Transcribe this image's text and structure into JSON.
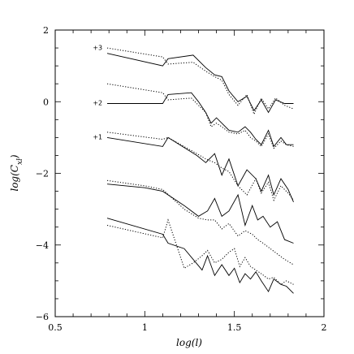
{
  "chart_data": {
    "type": "line",
    "xlabel": "log(l)",
    "ylabel": "log(C_xl)",
    "xlim": [
      0.5,
      2.0
    ],
    "ylim": [
      -6,
      2
    ],
    "xticks": [
      0.5,
      1,
      1.5,
      2
    ],
    "yticks": [
      -6,
      -4,
      -2,
      0,
      2
    ],
    "xtick_labels": [
      "0.5",
      "1",
      "1.5",
      "2"
    ],
    "ytick_labels": [
      "−6",
      "−4",
      "−2",
      "0",
      "2"
    ],
    "grid": false,
    "annotations": [
      {
        "text": "+3",
        "x": 0.71,
        "y": 1.45
      },
      {
        "text": "+2",
        "x": 0.71,
        "y": -0.1
      },
      {
        "text": "+1",
        "x": 0.71,
        "y": -1.05
      }
    ],
    "series": [
      {
        "style": "solid",
        "x": [
          0.79,
          1.1,
          1.13,
          1.27,
          1.34,
          1.39,
          1.43,
          1.47,
          1.52,
          1.57,
          1.61,
          1.65,
          1.69,
          1.73,
          1.78,
          1.83
        ],
        "y": [
          1.35,
          1.0,
          1.2,
          1.3,
          0.95,
          0.75,
          0.7,
          0.3,
          0.0,
          0.15,
          -0.25,
          0.05,
          -0.3,
          0.05,
          -0.05,
          -0.05
        ]
      },
      {
        "style": "dotted",
        "x": [
          0.79,
          1.1,
          1.13,
          1.27,
          1.34,
          1.39,
          1.43,
          1.47,
          1.52,
          1.57,
          1.61,
          1.65,
          1.69,
          1.73,
          1.78,
          1.83
        ],
        "y": [
          1.5,
          1.25,
          1.05,
          1.1,
          0.85,
          0.7,
          0.6,
          0.2,
          -0.1,
          0.2,
          -0.35,
          0.1,
          -0.2,
          0.1,
          -0.1,
          -0.2
        ]
      },
      {
        "style": "solid",
        "x": [
          0.79,
          1.1,
          1.13,
          1.26,
          1.3,
          1.34,
          1.37,
          1.4,
          1.43,
          1.47,
          1.52,
          1.56,
          1.59,
          1.62,
          1.65,
          1.69,
          1.72,
          1.76,
          1.79,
          1.83
        ],
        "y": [
          -0.05,
          -0.05,
          0.2,
          0.25,
          0.0,
          -0.3,
          -0.6,
          -0.45,
          -0.6,
          -0.8,
          -0.85,
          -0.7,
          -0.85,
          -1.05,
          -1.2,
          -0.8,
          -1.25,
          -1.0,
          -1.2,
          -1.2
        ]
      },
      {
        "style": "dotted",
        "x": [
          0.79,
          1.1,
          1.13,
          1.26,
          1.3,
          1.34,
          1.37,
          1.4,
          1.43,
          1.47,
          1.52,
          1.56,
          1.59,
          1.62,
          1.65,
          1.69,
          1.72,
          1.76,
          1.79,
          1.83
        ],
        "y": [
          0.5,
          0.25,
          0.05,
          0.1,
          -0.1,
          -0.3,
          -0.7,
          -0.6,
          -0.7,
          -0.85,
          -0.9,
          -0.8,
          -1.0,
          -1.1,
          -1.25,
          -0.9,
          -1.3,
          -1.1,
          -1.2,
          -1.25
        ]
      },
      {
        "style": "solid",
        "x": [
          0.79,
          1.1,
          1.13,
          1.29,
          1.34,
          1.39,
          1.43,
          1.47,
          1.52,
          1.57,
          1.62,
          1.65,
          1.69,
          1.72,
          1.76,
          1.8,
          1.83
        ],
        "y": [
          -1.0,
          -1.25,
          -1.0,
          -1.5,
          -1.7,
          -1.45,
          -2.05,
          -1.6,
          -2.35,
          -1.9,
          -2.15,
          -2.5,
          -2.05,
          -2.6,
          -2.15,
          -2.45,
          -2.8
        ]
      },
      {
        "style": "dotted",
        "x": [
          0.79,
          1.1,
          1.13,
          1.29,
          1.34,
          1.39,
          1.43,
          1.47,
          1.52,
          1.57,
          1.62,
          1.65,
          1.69,
          1.72,
          1.76,
          1.8,
          1.83
        ],
        "y": [
          -0.85,
          -1.05,
          -1.0,
          -1.45,
          -1.6,
          -1.7,
          -1.85,
          -1.95,
          -2.35,
          -2.6,
          -2.15,
          -2.55,
          -2.25,
          -2.75,
          -2.35,
          -2.55,
          -2.75
        ]
      },
      {
        "style": "solid",
        "x": [
          0.79,
          1.0,
          1.1,
          1.22,
          1.3,
          1.35,
          1.39,
          1.43,
          1.47,
          1.52,
          1.56,
          1.6,
          1.63,
          1.66,
          1.7,
          1.74,
          1.78,
          1.83
        ],
        "y": [
          -2.3,
          -2.4,
          -2.5,
          -2.9,
          -3.2,
          -3.05,
          -2.7,
          -3.2,
          -3.05,
          -2.6,
          -3.45,
          -2.9,
          -3.3,
          -3.2,
          -3.5,
          -3.35,
          -3.85,
          -3.95
        ]
      },
      {
        "style": "dotted",
        "x": [
          0.79,
          1.0,
          1.1,
          1.22,
          1.3,
          1.35,
          1.39,
          1.43,
          1.47,
          1.52,
          1.56,
          1.6,
          1.63,
          1.66,
          1.7,
          1.74,
          1.78,
          1.83
        ],
        "y": [
          -2.2,
          -2.35,
          -2.45,
          -3.0,
          -3.25,
          -3.3,
          -3.3,
          -3.55,
          -3.4,
          -3.75,
          -3.6,
          -3.7,
          -3.85,
          -3.95,
          -4.1,
          -4.25,
          -4.4,
          -4.55
        ]
      },
      {
        "style": "solid",
        "x": [
          0.79,
          1.1,
          1.13,
          1.22,
          1.27,
          1.32,
          1.35,
          1.39,
          1.43,
          1.47,
          1.5,
          1.53,
          1.56,
          1.59,
          1.62,
          1.65,
          1.69,
          1.72,
          1.76,
          1.79,
          1.83
        ],
        "y": [
          -3.25,
          -3.7,
          -3.95,
          -4.1,
          -4.4,
          -4.7,
          -4.3,
          -4.85,
          -4.55,
          -4.85,
          -4.65,
          -5.05,
          -4.8,
          -4.95,
          -4.75,
          -5.0,
          -5.3,
          -4.95,
          -5.1,
          -5.15,
          -5.35
        ]
      },
      {
        "style": "dotted",
        "x": [
          0.79,
          1.1,
          1.13,
          1.22,
          1.27,
          1.32,
          1.35,
          1.39,
          1.43,
          1.47,
          1.5,
          1.53,
          1.56,
          1.59,
          1.62,
          1.65,
          1.69,
          1.72,
          1.76,
          1.79,
          1.83
        ],
        "y": [
          -3.45,
          -3.8,
          -3.3,
          -4.65,
          -4.5,
          -4.3,
          -4.15,
          -4.5,
          -4.4,
          -4.2,
          -4.1,
          -4.6,
          -4.35,
          -4.6,
          -4.7,
          -4.8,
          -4.95,
          -4.9,
          -5.1,
          -5.0,
          -5.1
        ]
      }
    ]
  }
}
